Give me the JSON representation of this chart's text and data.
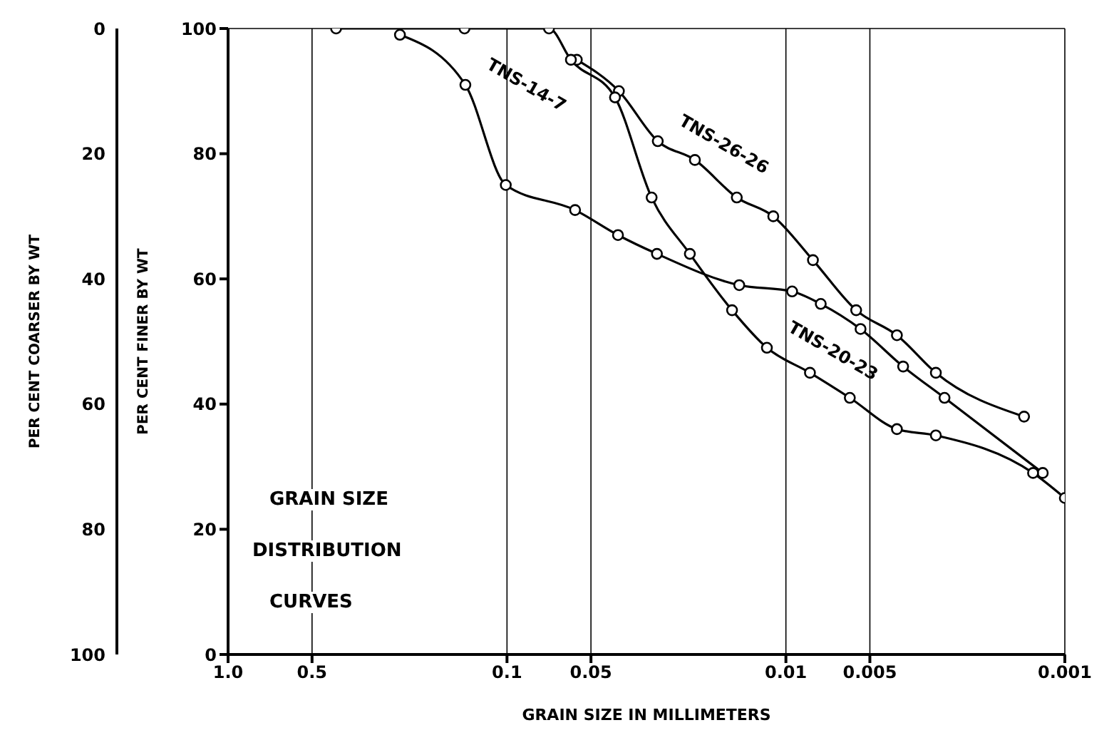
{
  "chart_data": {
    "type": "line",
    "xlabel": "GRAIN SIZE IN MILLIMETERS",
    "ylabel": "PER CENT FINER BY WT",
    "y2label": "PER CENT COARSER BY WT",
    "annotations": [
      "GRAIN SIZE",
      "DISTRIBUTION",
      "CURVES"
    ],
    "log": "x",
    "xlim": [
      1,
      0.001
    ],
    "xticks": [
      {
        "value": 1,
        "label": "1.0"
      },
      0.5,
      0.1,
      0.05,
      0.01,
      0.005,
      0.001
    ],
    "ylim": [
      0,
      100
    ],
    "yticks": [
      0,
      20,
      40,
      60,
      80,
      100
    ],
    "y2lim": [
      100,
      0
    ],
    "y2ticks": [
      0,
      20,
      40,
      60,
      80,
      100
    ],
    "grid": true,
    "legend": false,
    "marker": "circle",
    "line_style": "solid",
    "series": [
      {
        "name": "TNS-14-7",
        "color": "#000000",
        "x": [
          0.242,
          0.141,
          0.101,
          0.057,
          0.04,
          0.029,
          0.0147,
          0.0095,
          0.0075,
          0.0054,
          0.0038,
          0.0027,
          0.0012
        ],
        "values": [
          99,
          91,
          75,
          71,
          67,
          64,
          59,
          58,
          56,
          52,
          46,
          41,
          29
        ]
      },
      {
        "name": "TNS-26-26",
        "color": "#000000",
        "x": [
          0.0562,
          0.0397,
          0.0288,
          0.0212,
          0.015,
          0.0111,
          0.008,
          0.0056,
          0.004,
          0.0029,
          0.0014
        ],
        "values": [
          95,
          90,
          82,
          79,
          73,
          70,
          63,
          55,
          51,
          45,
          38
        ]
      },
      {
        "name": "TNS-20-23",
        "color": "#000000",
        "x": [
          0.41,
          0.142,
          0.0707,
          0.059,
          0.041,
          0.0303,
          0.0221,
          0.0156,
          0.0117,
          0.0082,
          0.0059,
          0.004,
          0.0029,
          0.0013,
          0.001
        ],
        "values": [
          100,
          100,
          100,
          95,
          89,
          73,
          64,
          55,
          49,
          45,
          41,
          36,
          35,
          29,
          25
        ]
      }
    ]
  }
}
